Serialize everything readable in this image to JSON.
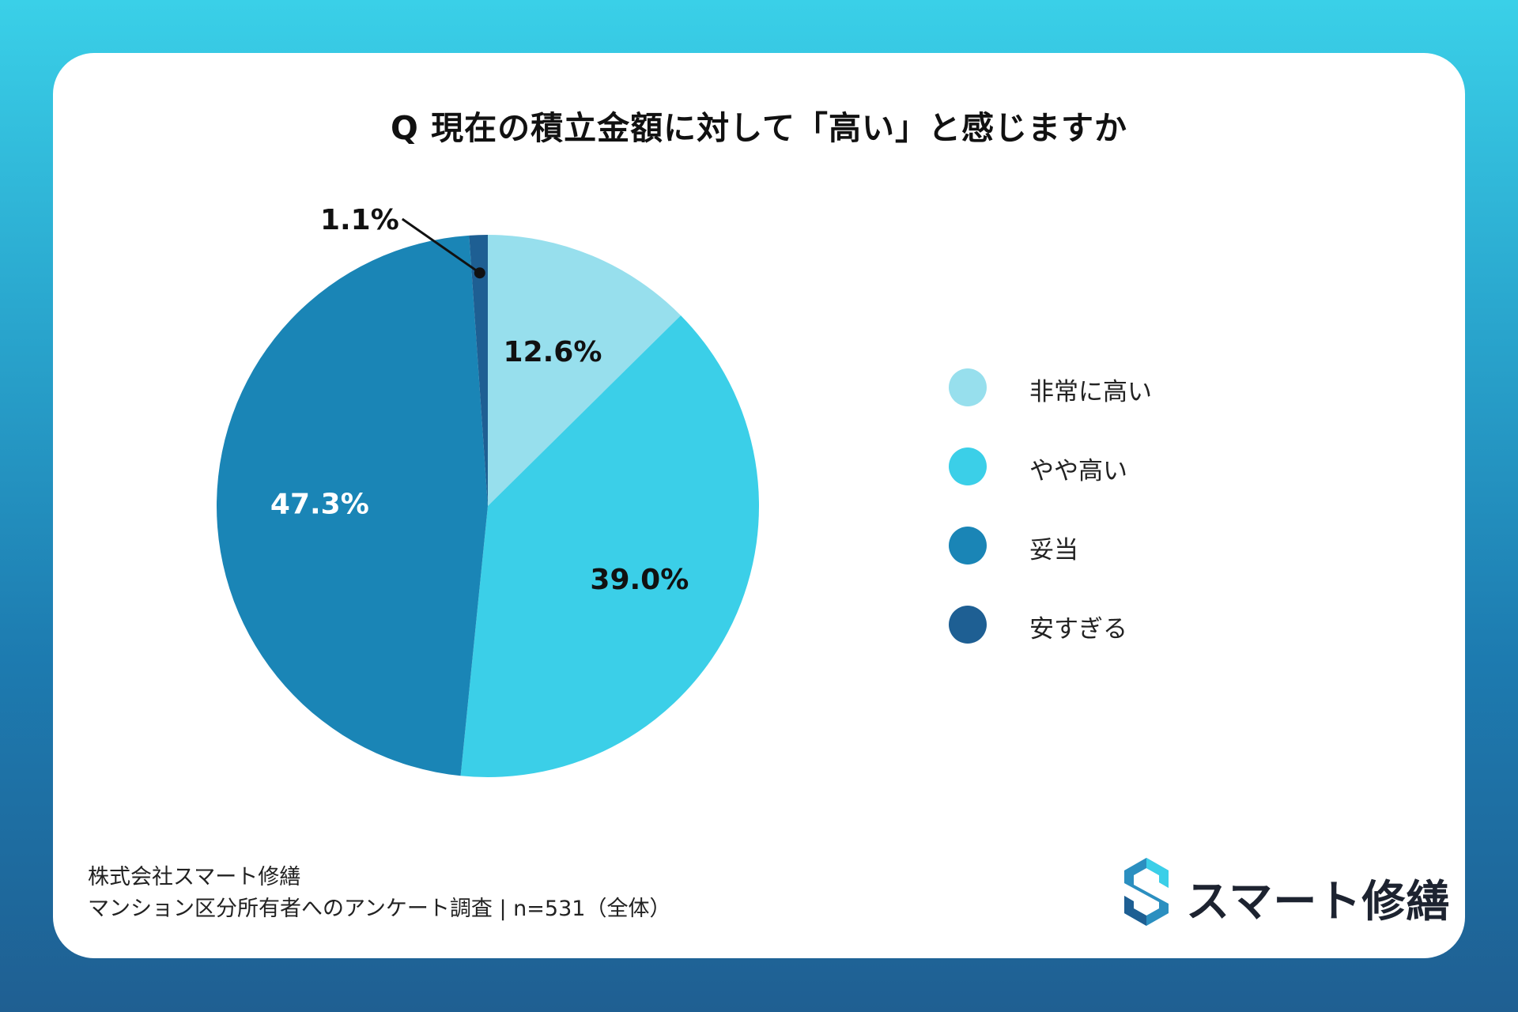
{
  "chart_data": {
    "type": "pie",
    "title": "Q 現在の積立金額に対して「高い」と感じますか",
    "slices": [
      {
        "label": "非常に高い",
        "value": 12.6,
        "display": "12.6%",
        "color": "#97dfed",
        "text_color": "#111111"
      },
      {
        "label": "やや高い",
        "value": 39.0,
        "display": "39.0%",
        "color": "#3bcfe8",
        "text_color": "#111111"
      },
      {
        "label": "妥当",
        "value": 47.3,
        "display": "47.3%",
        "color": "#1a85b6",
        "text_color": "#ffffff"
      },
      {
        "label": "安すぎる",
        "value": 1.1,
        "display": "1.1%",
        "color": "#1e5f93",
        "text_color": "#111111"
      }
    ],
    "legend_placement": "right"
  },
  "footer": {
    "line1": "株式会社スマート修繕",
    "line2": "マンション区分所有者へのアンケート調査 | n=531（全体）"
  },
  "logo": {
    "text": "スマート修繕"
  }
}
